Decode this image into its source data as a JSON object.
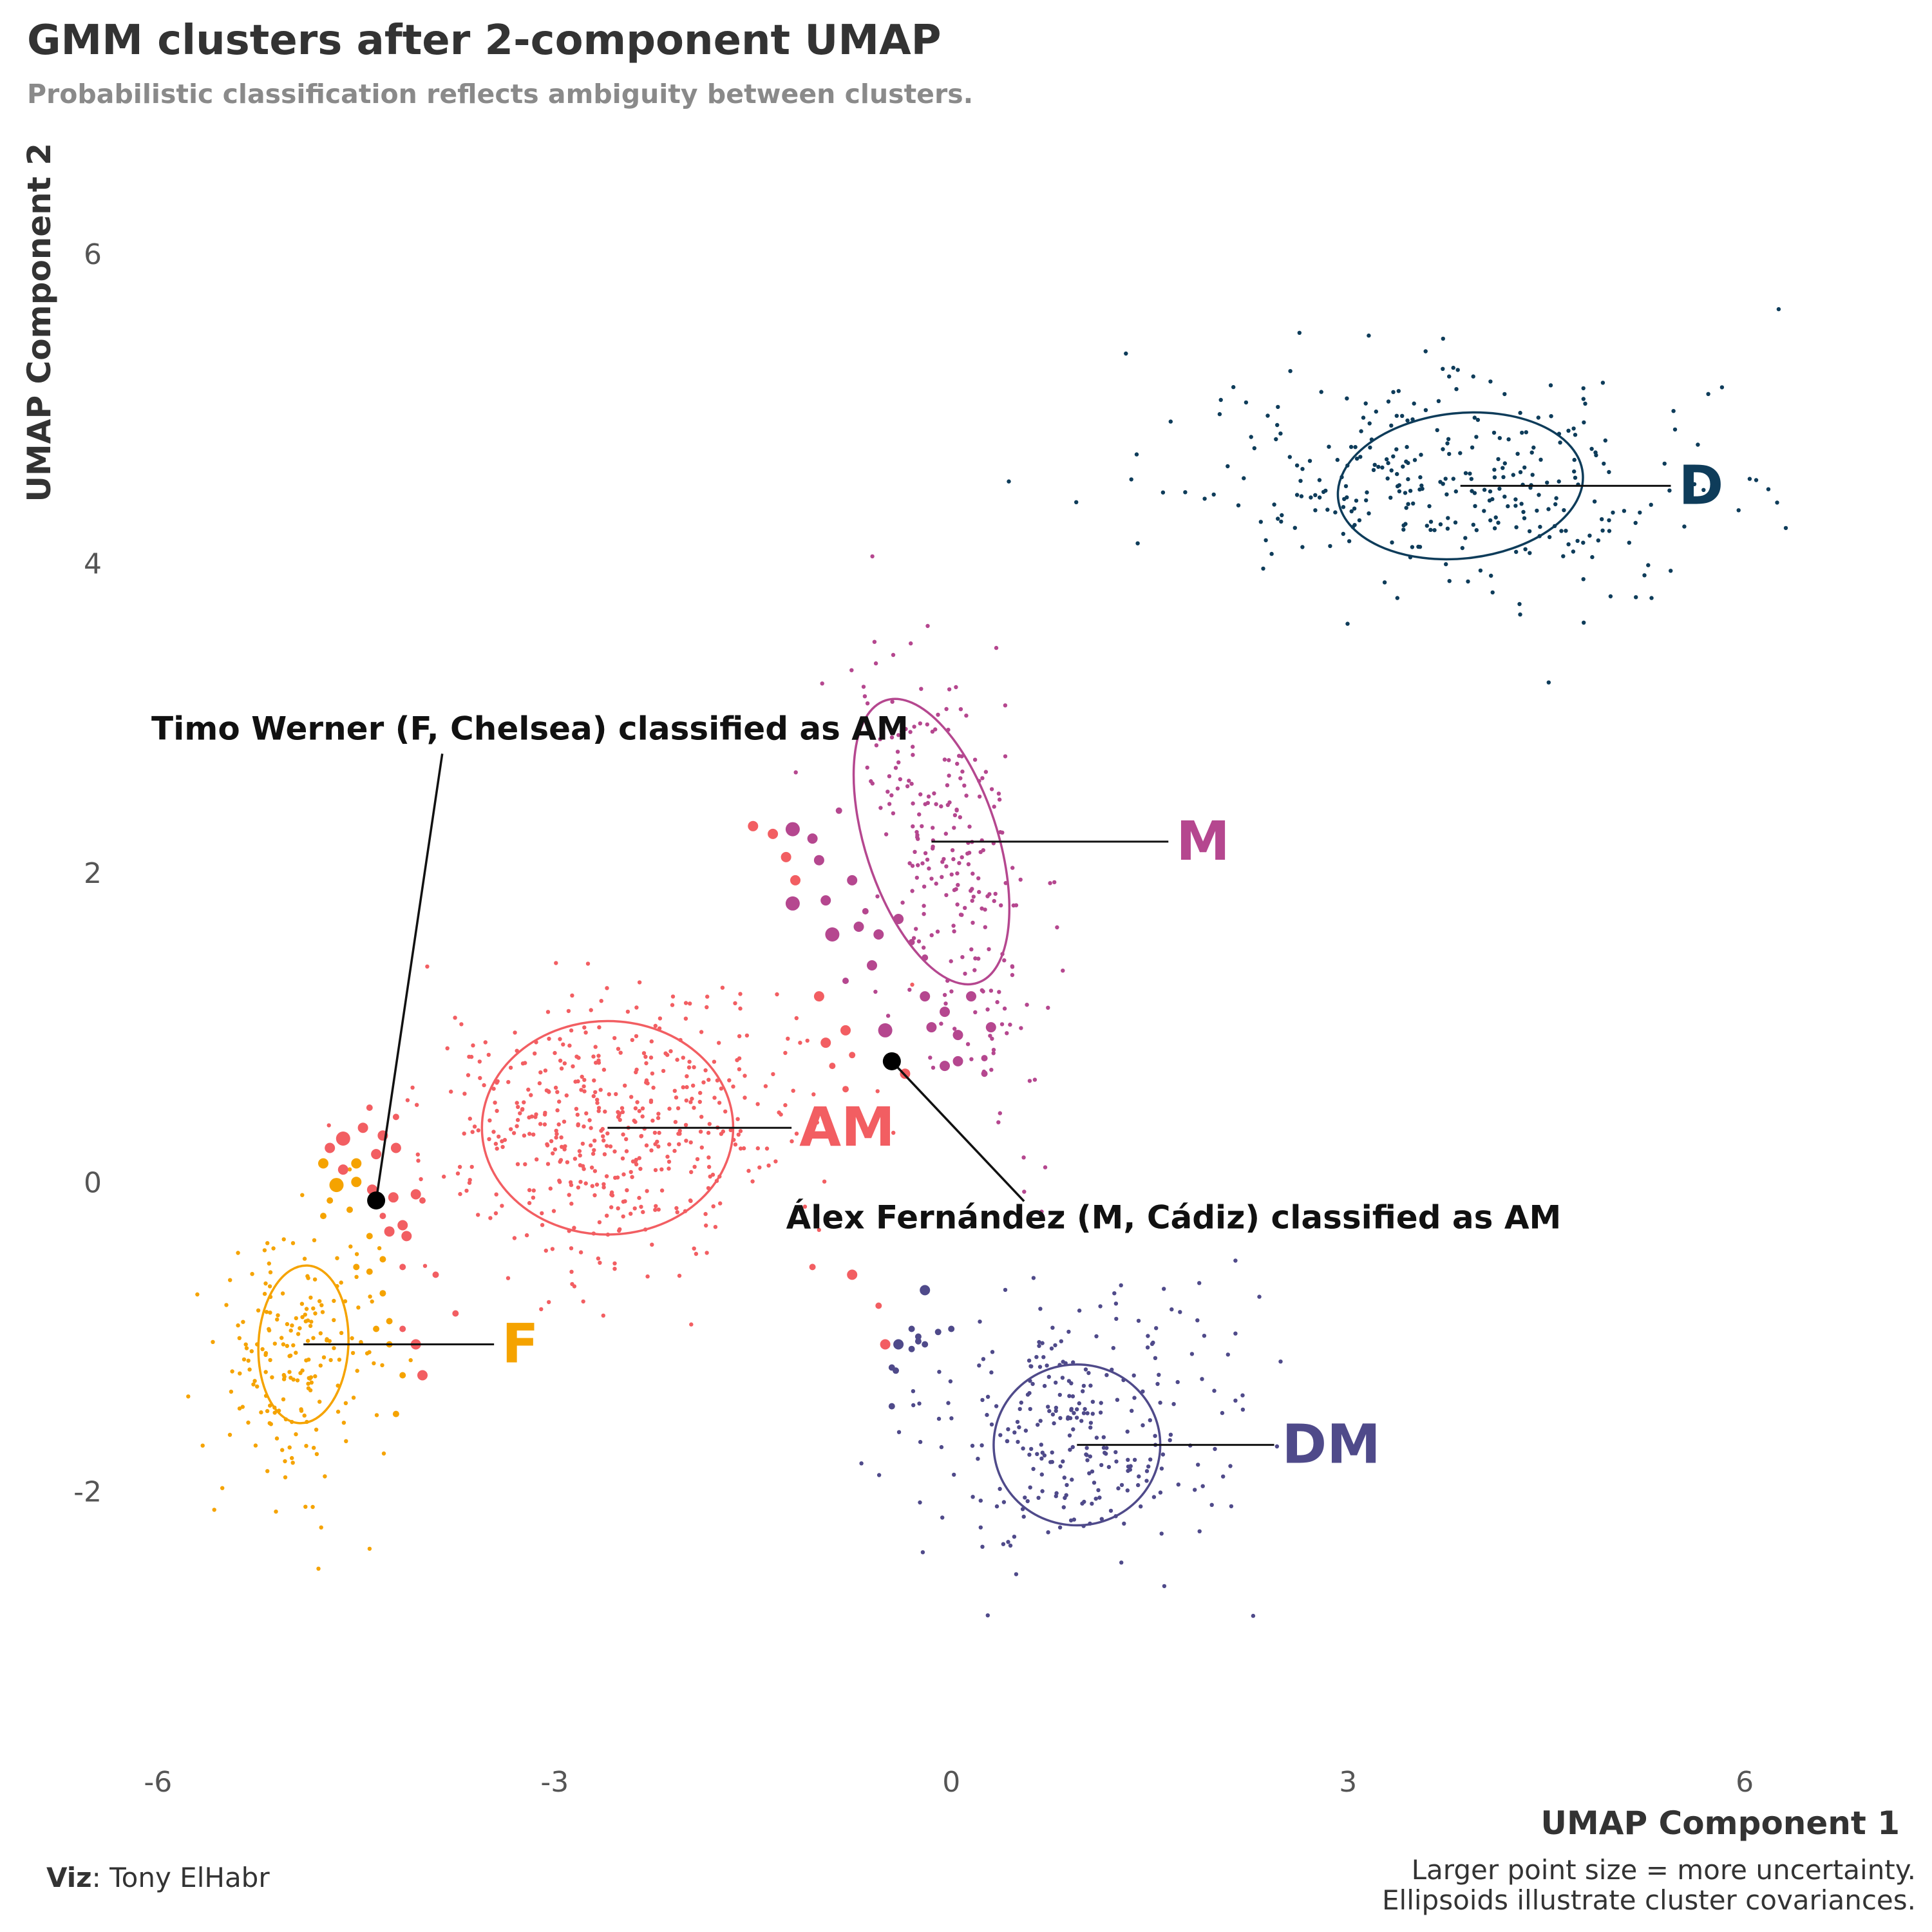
{
  "chart_data": {
    "type": "scatter",
    "title": "GMM clusters after 2-component UMAP",
    "subtitle": "Probabilistic classification reflects ambiguity between clusters.",
    "xlabel": "UMAP Component 1",
    "ylabel": "UMAP Component 2",
    "xlim": [
      -7.0,
      7.1
    ],
    "ylim": [
      -3.6,
      6.6
    ],
    "x_ticks": [
      -6,
      -3,
      0,
      3,
      6
    ],
    "y_ticks": [
      -2,
      0,
      2,
      4,
      6
    ],
    "grid": false,
    "clusters": [
      {
        "name": "D",
        "color": "#0e3c5a",
        "center": [
          3.9,
          4.5
        ],
        "sd": [
          1.0,
          0.35
        ],
        "rho": -0.05,
        "n": 320,
        "ellipse": {
          "center": [
            3.85,
            4.5
          ],
          "rx": 0.93,
          "ry": 0.47,
          "angle": -6
        },
        "label_x": 5.5,
        "label_y": 4.5
      },
      {
        "name": "M",
        "color": "#b5478f",
        "center": [
          0.0,
          2.05
        ],
        "sd": [
          0.35,
          0.75
        ],
        "rho": -0.55,
        "n": 240,
        "ellipse": {
          "center": [
            -0.15,
            2.2
          ],
          "rx": 0.5,
          "ry": 0.96,
          "angle": -18
        },
        "label_x": 1.7,
        "label_y": 2.2
      },
      {
        "name": "AM",
        "color": "#f25e62",
        "center": [
          -2.55,
          0.35
        ],
        "sd": [
          0.72,
          0.42
        ],
        "rho": 0.1,
        "n": 480,
        "ellipse": {
          "center": [
            -2.6,
            0.35
          ],
          "rx": 0.95,
          "ry": 0.69,
          "angle": 0
        },
        "label_x": -1.15,
        "label_y": 0.35
      },
      {
        "name": "F",
        "color": "#f5a300",
        "center": [
          -4.95,
          -1.1
        ],
        "sd": [
          0.3,
          0.42
        ],
        "rho": 0.1,
        "n": 190,
        "ellipse": {
          "center": [
            -4.9,
            -1.05
          ],
          "rx": 0.34,
          "ry": 0.51,
          "angle": 3
        },
        "label_x": -3.4,
        "label_y": -1.05
      },
      {
        "name": "DM",
        "color": "#4f4a8a",
        "center": [
          1.0,
          -1.6
        ],
        "sd": [
          0.55,
          0.42
        ],
        "rho": 0.05,
        "n": 280,
        "ellipse": {
          "center": [
            0.95,
            -1.7
          ],
          "rx": 0.63,
          "ry": 0.52,
          "angle": 0
        },
        "label_x": 2.5,
        "label_y": -1.7
      }
    ],
    "uncertain_points": [
      {
        "x": -1.5,
        "y": 2.3,
        "cluster": "AM",
        "r": 2
      },
      {
        "x": -1.35,
        "y": 2.25,
        "cluster": "AM",
        "r": 2
      },
      {
        "x": -1.25,
        "y": 2.1,
        "cluster": "AM",
        "r": 2
      },
      {
        "x": -1.2,
        "y": 2.28,
        "cluster": "M",
        "r": 3
      },
      {
        "x": -1.05,
        "y": 2.22,
        "cluster": "M",
        "r": 2
      },
      {
        "x": -1.18,
        "y": 1.95,
        "cluster": "AM",
        "r": 2
      },
      {
        "x": -1.0,
        "y": 2.08,
        "cluster": "M",
        "r": 2
      },
      {
        "x": -0.75,
        "y": 1.95,
        "cluster": "M",
        "r": 2
      },
      {
        "x": -1.2,
        "y": 1.8,
        "cluster": "M",
        "r": 3
      },
      {
        "x": -0.95,
        "y": 1.82,
        "cluster": "M",
        "r": 2
      },
      {
        "x": -0.85,
        "y": 2.4,
        "cluster": "M",
        "r": 1
      },
      {
        "x": -0.65,
        "y": 1.75,
        "cluster": "M",
        "r": 1
      },
      {
        "x": -0.9,
        "y": 1.6,
        "cluster": "M",
        "r": 3
      },
      {
        "x": -0.7,
        "y": 1.65,
        "cluster": "M",
        "r": 2
      },
      {
        "x": -0.55,
        "y": 1.6,
        "cluster": "M",
        "r": 2
      },
      {
        "x": -0.4,
        "y": 1.7,
        "cluster": "M",
        "r": 2
      },
      {
        "x": -0.3,
        "y": 1.55,
        "cluster": "M",
        "r": 1
      },
      {
        "x": -0.6,
        "y": 1.4,
        "cluster": "M",
        "r": 2
      },
      {
        "x": -0.2,
        "y": 1.45,
        "cluster": "M",
        "r": 1
      },
      {
        "x": -1.0,
        "y": 1.2,
        "cluster": "AM",
        "r": 2
      },
      {
        "x": -0.8,
        "y": 1.3,
        "cluster": "M",
        "r": 1
      },
      {
        "x": -0.2,
        "y": 1.2,
        "cluster": "M",
        "r": 2
      },
      {
        "x": -0.05,
        "y": 1.1,
        "cluster": "M",
        "r": 2
      },
      {
        "x": 0.15,
        "y": 1.2,
        "cluster": "M",
        "r": 2
      },
      {
        "x": -0.15,
        "y": 1.0,
        "cluster": "M",
        "r": 2
      },
      {
        "x": 0.05,
        "y": 0.95,
        "cluster": "M",
        "r": 2
      },
      {
        "x": 0.3,
        "y": 1.0,
        "cluster": "M",
        "r": 2
      },
      {
        "x": 0.25,
        "y": 0.8,
        "cluster": "M",
        "r": 1
      },
      {
        "x": -0.8,
        "y": 0.98,
        "cluster": "AM",
        "r": 2
      },
      {
        "x": -0.95,
        "y": 0.9,
        "cluster": "AM",
        "r": 2
      },
      {
        "x": -0.5,
        "y": 0.98,
        "cluster": "M",
        "r": 3
      },
      {
        "x": -0.75,
        "y": 0.82,
        "cluster": "AM",
        "r": 1
      },
      {
        "x": -0.9,
        "y": 0.75,
        "cluster": "AM",
        "r": 1
      },
      {
        "x": -0.35,
        "y": 0.7,
        "cluster": "AM",
        "r": 2
      },
      {
        "x": -0.8,
        "y": 0.6,
        "cluster": "AM",
        "r": 1
      },
      {
        "x": -0.05,
        "y": 0.75,
        "cluster": "M",
        "r": 2
      },
      {
        "x": 0.05,
        "y": 0.78,
        "cluster": "M",
        "r": 2
      },
      {
        "x": 0.25,
        "y": 0.7,
        "cluster": "M",
        "r": 1
      },
      {
        "x": -0.75,
        "y": -0.6,
        "cluster": "AM",
        "r": 2
      },
      {
        "x": -1.05,
        "y": -0.55,
        "cluster": "AM",
        "r": 1
      },
      {
        "x": -0.55,
        "y": -0.8,
        "cluster": "AM",
        "r": 1
      },
      {
        "x": -0.5,
        "y": -1.05,
        "cluster": "AM",
        "r": 2
      },
      {
        "x": -0.2,
        "y": -0.7,
        "cluster": "DM",
        "r": 2
      },
      {
        "x": -0.3,
        "y": -0.95,
        "cluster": "DM",
        "r": 1
      },
      {
        "x": -0.1,
        "y": -0.97,
        "cluster": "DM",
        "r": 1
      },
      {
        "x": -0.25,
        "y": -1.0,
        "cluster": "DM",
        "r": 1
      },
      {
        "x": -0.4,
        "y": -1.05,
        "cluster": "DM",
        "r": 2
      },
      {
        "x": -0.3,
        "y": -1.08,
        "cluster": "DM",
        "r": 1
      },
      {
        "x": -0.45,
        "y": -1.2,
        "cluster": "DM",
        "r": 1
      },
      {
        "x": -0.42,
        "y": -1.22,
        "cluster": "DM",
        "r": 1
      },
      {
        "x": -0.25,
        "y": -1.03,
        "cluster": "DM",
        "r": 1
      },
      {
        "x": -0.2,
        "y": -1.05,
        "cluster": "DM",
        "r": 1
      },
      {
        "x": 0.0,
        "y": -0.95,
        "cluster": "DM",
        "r": 1
      },
      {
        "x": -0.45,
        "y": -1.45,
        "cluster": "DM",
        "r": 1
      },
      {
        "x": -4.7,
        "y": 0.22,
        "cluster": "AM",
        "r": 2
      },
      {
        "x": -4.6,
        "y": 0.28,
        "cluster": "AM",
        "r": 3
      },
      {
        "x": -4.45,
        "y": 0.35,
        "cluster": "AM",
        "r": 2
      },
      {
        "x": -4.3,
        "y": 0.3,
        "cluster": "AM",
        "r": 2
      },
      {
        "x": -4.2,
        "y": 0.42,
        "cluster": "AM",
        "r": 1
      },
      {
        "x": -4.4,
        "y": 0.48,
        "cluster": "AM",
        "r": 1
      },
      {
        "x": -4.75,
        "y": 0.12,
        "cluster": "F",
        "r": 2
      },
      {
        "x": -4.6,
        "y": 0.08,
        "cluster": "AM",
        "r": 2
      },
      {
        "x": -4.5,
        "y": 0.12,
        "cluster": "F",
        "r": 2
      },
      {
        "x": -4.35,
        "y": 0.18,
        "cluster": "AM",
        "r": 2
      },
      {
        "x": -4.2,
        "y": 0.22,
        "cluster": "AM",
        "r": 2
      },
      {
        "x": -4.65,
        "y": -0.02,
        "cluster": "F",
        "r": 3
      },
      {
        "x": -4.5,
        "y": 0.0,
        "cluster": "F",
        "r": 2
      },
      {
        "x": -4.38,
        "y": -0.05,
        "cluster": "AM",
        "r": 2
      },
      {
        "x": -4.22,
        "y": -0.1,
        "cluster": "AM",
        "r": 2
      },
      {
        "x": -4.05,
        "y": -0.08,
        "cluster": "AM",
        "r": 2
      },
      {
        "x": -4.0,
        "y": -0.12,
        "cluster": "AM",
        "r": 1
      },
      {
        "x": -4.7,
        "y": -0.12,
        "cluster": "F",
        "r": 1
      },
      {
        "x": -4.55,
        "y": -0.18,
        "cluster": "F",
        "r": 1
      },
      {
        "x": -4.3,
        "y": -0.22,
        "cluster": "AM",
        "r": 1
      },
      {
        "x": -4.15,
        "y": -0.28,
        "cluster": "AM",
        "r": 2
      },
      {
        "x": -4.4,
        "y": -0.35,
        "cluster": "F",
        "r": 1
      },
      {
        "x": -4.25,
        "y": -0.32,
        "cluster": "AM",
        "r": 2
      },
      {
        "x": -4.12,
        "y": -0.35,
        "cluster": "AM",
        "r": 2
      },
      {
        "x": -4.3,
        "y": -0.5,
        "cluster": "F",
        "r": 1
      },
      {
        "x": -4.15,
        "y": -0.55,
        "cluster": "AM",
        "r": 1
      },
      {
        "x": -4.5,
        "y": -0.55,
        "cluster": "F",
        "r": 1
      },
      {
        "x": -4.4,
        "y": -0.58,
        "cluster": "F",
        "r": 1
      },
      {
        "x": -4.3,
        "y": -0.72,
        "cluster": "F",
        "r": 1
      },
      {
        "x": -4.25,
        "y": -0.9,
        "cluster": "F",
        "r": 1
      },
      {
        "x": -4.35,
        "y": -0.95,
        "cluster": "F",
        "r": 1
      },
      {
        "x": -4.15,
        "y": -0.95,
        "cluster": "AM",
        "r": 1
      },
      {
        "x": -4.05,
        "y": -1.05,
        "cluster": "AM",
        "r": 2
      },
      {
        "x": -4.25,
        "y": -1.05,
        "cluster": "F",
        "r": 1
      },
      {
        "x": -4.0,
        "y": -1.25,
        "cluster": "AM",
        "r": 2
      },
      {
        "x": -4.15,
        "y": -1.25,
        "cluster": "F",
        "r": 1
      },
      {
        "x": -4.2,
        "y": -1.5,
        "cluster": "F",
        "r": 1
      },
      {
        "x": -3.9,
        "y": -0.6,
        "cluster": "AM",
        "r": 1
      },
      {
        "x": -3.75,
        "y": -0.85,
        "cluster": "AM",
        "r": 1
      },
      {
        "x": -4.75,
        "y": -0.22,
        "cluster": "F",
        "r": 1
      }
    ],
    "highlights": [
      {
        "label": "Timo Werner (F, Chelsea) classified as AM",
        "x": -4.35,
        "y": -0.12,
        "label_x": -6.05,
        "label_y": 2.86,
        "anchor_x": -3.85
      },
      {
        "label": "Álex Fernández (M, Cádiz) classified as AM",
        "x": -0.45,
        "y": 0.78,
        "label_x": -1.25,
        "label_y": -0.3,
        "anchor_x": 0.55
      }
    ]
  },
  "caption": {
    "viz_bold": "Viz",
    "viz_rest": ": Tony ElHabr",
    "note_line1": "Larger point size = more uncertainty.",
    "note_line2": "Ellipsoids illustrate cluster covariances."
  }
}
